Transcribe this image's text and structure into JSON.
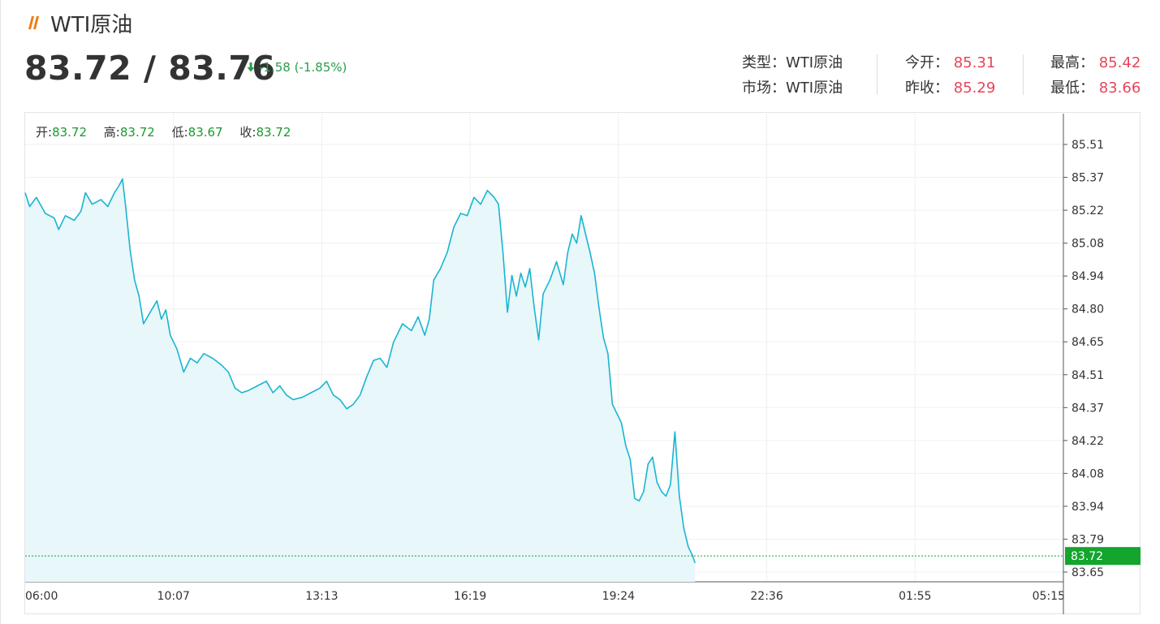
{
  "header": {
    "title": "WTI原油",
    "price": "83.72 / 83.76",
    "change": "-1.58 (-1.85%)"
  },
  "stats": {
    "type_label": "类型：",
    "type_value": "WTI原油",
    "market_label": "市场：",
    "market_value": "WTI原油",
    "open_label": "今开：",
    "open_value": "85.31",
    "prev_close_label": "昨收：",
    "prev_close_value": "85.29",
    "high_label": "最高：",
    "high_value": "85.42",
    "low_label": "最低：",
    "low_value": "83.66"
  },
  "ohlc": {
    "open_label": "开:",
    "open_value": "83.72",
    "high_label": "高:",
    "high_value": "83.72",
    "low_label": "低:",
    "low_value": "83.67",
    "close_label": "收:",
    "close_value": "83.72"
  },
  "colors": {
    "line": "#1ab4d3",
    "fill": "#e8f7f9",
    "up_red": "#e8445a",
    "down_green": "#2a9d4b",
    "last_price": "#13a52d"
  },
  "chart_data": {
    "type": "area",
    "x_ticks": [
      "06:00",
      "10:07",
      "13:13",
      "16:19",
      "19:24",
      "22:36",
      "01:55",
      "05:15"
    ],
    "y_ticks": [
      "85.51",
      "85.37",
      "85.22",
      "85.08",
      "84.94",
      "84.80",
      "84.65",
      "84.51",
      "84.37",
      "84.22",
      "84.08",
      "83.94",
      "83.79",
      "83.65"
    ],
    "ylim": [
      83.65,
      85.51
    ],
    "last_price": "83.72",
    "x_session_hours": 23.25,
    "series": [
      {
        "values": [
          [
            0.0,
            85.3
          ],
          [
            0.1,
            85.24
          ],
          [
            0.25,
            85.28
          ],
          [
            0.45,
            85.21
          ],
          [
            0.65,
            85.19
          ],
          [
            0.75,
            85.14
          ],
          [
            0.9,
            85.2
          ],
          [
            1.1,
            85.18
          ],
          [
            1.25,
            85.22
          ],
          [
            1.35,
            85.3
          ],
          [
            1.5,
            85.25
          ],
          [
            1.7,
            85.27
          ],
          [
            1.85,
            85.24
          ],
          [
            2.0,
            85.3
          ],
          [
            2.1,
            85.33
          ],
          [
            2.18,
            85.36
          ],
          [
            2.25,
            85.24
          ],
          [
            2.35,
            85.05
          ],
          [
            2.45,
            84.92
          ],
          [
            2.55,
            84.85
          ],
          [
            2.65,
            84.73
          ],
          [
            2.8,
            84.78
          ],
          [
            2.95,
            84.83
          ],
          [
            3.05,
            84.75
          ],
          [
            3.15,
            84.79
          ],
          [
            3.25,
            84.68
          ],
          [
            3.4,
            84.62
          ],
          [
            3.55,
            84.52
          ],
          [
            3.7,
            84.58
          ],
          [
            3.85,
            84.56
          ],
          [
            4.0,
            84.6
          ],
          [
            4.2,
            84.58
          ],
          [
            4.4,
            84.55
          ],
          [
            4.55,
            84.52
          ],
          [
            4.7,
            84.45
          ],
          [
            4.85,
            84.43
          ],
          [
            5.0,
            84.44
          ],
          [
            5.2,
            84.46
          ],
          [
            5.4,
            84.48
          ],
          [
            5.55,
            84.43
          ],
          [
            5.7,
            84.46
          ],
          [
            5.85,
            84.42
          ],
          [
            6.0,
            84.4
          ],
          [
            6.2,
            84.41
          ],
          [
            6.4,
            84.43
          ],
          [
            6.6,
            84.45
          ],
          [
            6.75,
            84.48
          ],
          [
            6.9,
            84.42
          ],
          [
            7.05,
            84.4
          ],
          [
            7.2,
            84.36
          ],
          [
            7.35,
            84.38
          ],
          [
            7.5,
            84.42
          ],
          [
            7.65,
            84.5
          ],
          [
            7.8,
            84.57
          ],
          [
            7.95,
            84.58
          ],
          [
            8.1,
            84.54
          ],
          [
            8.25,
            84.65
          ],
          [
            8.45,
            84.73
          ],
          [
            8.65,
            84.7
          ],
          [
            8.8,
            84.76
          ],
          [
            8.95,
            84.68
          ],
          [
            9.05,
            84.75
          ],
          [
            9.15,
            84.92
          ],
          [
            9.3,
            84.97
          ],
          [
            9.45,
            85.04
          ],
          [
            9.6,
            85.15
          ],
          [
            9.75,
            85.21
          ],
          [
            9.9,
            85.2
          ],
          [
            10.05,
            85.28
          ],
          [
            10.2,
            85.25
          ],
          [
            10.35,
            85.31
          ],
          [
            10.5,
            85.28
          ],
          [
            10.6,
            85.25
          ],
          [
            10.7,
            85.04
          ],
          [
            10.8,
            84.78
          ],
          [
            10.9,
            84.94
          ],
          [
            11.0,
            84.85
          ],
          [
            11.1,
            84.95
          ],
          [
            11.2,
            84.89
          ],
          [
            11.3,
            84.97
          ],
          [
            11.4,
            84.8
          ],
          [
            11.5,
            84.66
          ],
          [
            11.6,
            84.86
          ],
          [
            11.75,
            84.92
          ],
          [
            11.9,
            85.0
          ],
          [
            12.05,
            84.9
          ],
          [
            12.15,
            85.04
          ],
          [
            12.25,
            85.12
          ],
          [
            12.35,
            85.08
          ],
          [
            12.45,
            85.2
          ],
          [
            12.55,
            85.12
          ],
          [
            12.65,
            85.04
          ],
          [
            12.75,
            84.95
          ],
          [
            12.85,
            84.8
          ],
          [
            12.95,
            84.67
          ],
          [
            13.05,
            84.6
          ],
          [
            13.15,
            84.38
          ],
          [
            13.25,
            84.34
          ],
          [
            13.35,
            84.3
          ],
          [
            13.45,
            84.2
          ],
          [
            13.55,
            84.14
          ],
          [
            13.65,
            83.97
          ],
          [
            13.75,
            83.96
          ],
          [
            13.85,
            84.0
          ],
          [
            13.95,
            84.12
          ],
          [
            14.05,
            84.15
          ],
          [
            14.15,
            84.04
          ],
          [
            14.25,
            84.0
          ],
          [
            14.35,
            83.98
          ],
          [
            14.45,
            84.03
          ],
          [
            14.55,
            84.26
          ],
          [
            14.65,
            83.98
          ],
          [
            14.75,
            83.84
          ],
          [
            14.85,
            83.76
          ],
          [
            14.95,
            83.72
          ],
          [
            15.0,
            83.69
          ]
        ]
      }
    ]
  }
}
